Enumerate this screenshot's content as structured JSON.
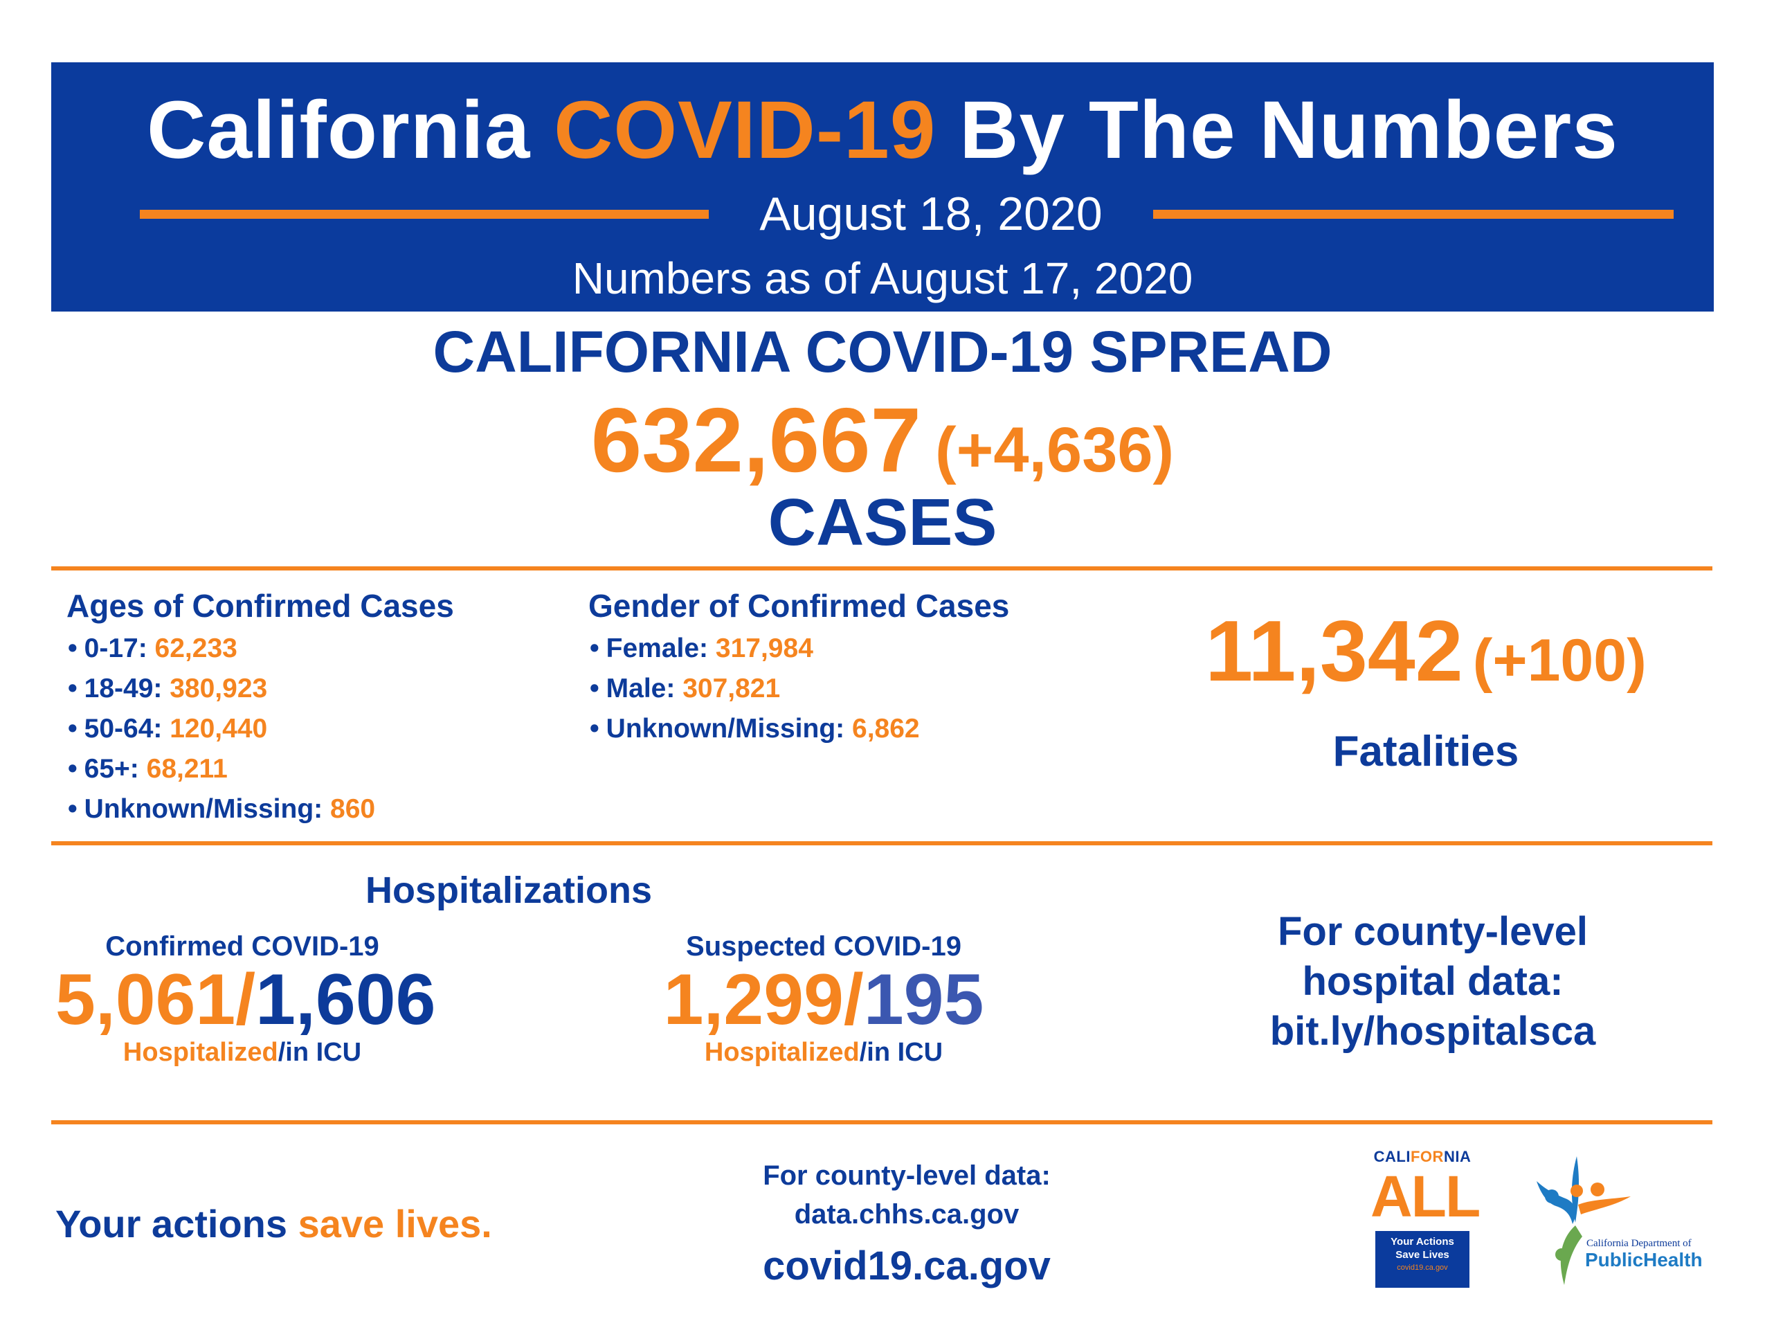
{
  "header": {
    "title_part1": "California",
    "title_accent": "COVID-19",
    "title_part2": "By The Numbers",
    "date": "August 18, 2020",
    "as_of": "Numbers as of August 17, 2020"
  },
  "spread": {
    "title": "CALIFORNIA COVID-19 SPREAD",
    "total": "632,667",
    "delta": "(+4,636)",
    "label": "CASES"
  },
  "ages": {
    "heading": "Ages of Confirmed Cases",
    "items": [
      {
        "label": "0-17:",
        "value": "62,233"
      },
      {
        "label": "18-49:",
        "value": "380,923"
      },
      {
        "label": "50-64:",
        "value": "120,440"
      },
      {
        "label": "65+:",
        "value": "68,211"
      },
      {
        "label": "Unknown/Missing:",
        "value": "860"
      }
    ]
  },
  "gender": {
    "heading": "Gender of Confirmed Cases",
    "items": [
      {
        "label": "Female:",
        "value": "317,984"
      },
      {
        "label": "Male:",
        "value": "307,821"
      },
      {
        "label": "Unknown/Missing:",
        "value": "6,862"
      }
    ]
  },
  "fatalities": {
    "total": "11,342",
    "delta": "(+100)",
    "label": "Fatalities"
  },
  "hospitalizations": {
    "title": "Hospitalizations",
    "confirmed": {
      "subtitle": "Confirmed COVID-19",
      "hospitalized": "5,061/",
      "icu": "1,606",
      "foot_hosp": "Hospitalized",
      "foot_icu": "/in ICU"
    },
    "suspected": {
      "subtitle": "Suspected COVID-19",
      "hospitalized": "1,299/",
      "icu": "195",
      "foot_hosp": "Hospitalized",
      "foot_icu": "/in ICU"
    }
  },
  "county_hospital": {
    "line1": "For county-level",
    "line2": "hospital data:",
    "line3": "bit.ly/hospitalsca"
  },
  "footer": {
    "actions_part1": "Your actions",
    "actions_part2": "save lives.",
    "county_data_line1": "For county-level data:",
    "county_data_line2": "data.chhs.ca.gov",
    "site": "covid19.ca.gov"
  },
  "logos": {
    "ca_all": {
      "word_part1": "CALI",
      "word_accent": "FOR",
      "word_part2": "NIA",
      "big": "ALL",
      "box_line1": "Your Actions",
      "box_line2": "Save Lives",
      "box_line3": "covid19.ca.gov"
    },
    "cdph": {
      "dept": "California Department of",
      "name": "PublicHealth"
    }
  },
  "colors": {
    "navy": "#0b3b9d",
    "orange": "#f5841f",
    "white": "#ffffff"
  }
}
